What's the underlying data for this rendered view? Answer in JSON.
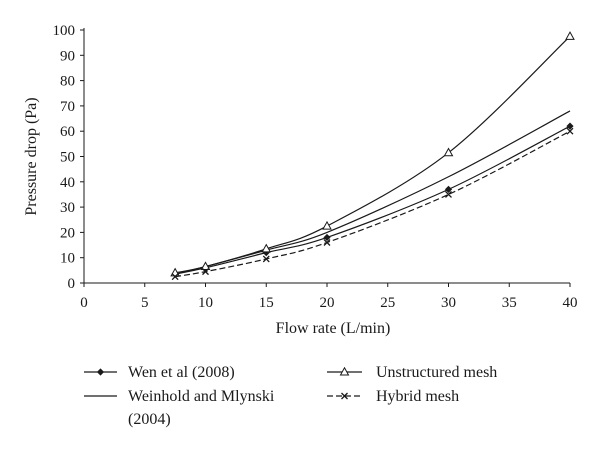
{
  "chart_data": {
    "type": "line",
    "title": "",
    "xlabel": "Flow rate (L/min)",
    "ylabel": "Pressure drop (Pa)",
    "xlim": [
      0,
      40
    ],
    "ylim": [
      0,
      100
    ],
    "x_ticks": [
      0,
      5,
      10,
      15,
      20,
      25,
      30,
      35,
      40
    ],
    "y_ticks": [
      0,
      10,
      20,
      30,
      40,
      50,
      60,
      70,
      80,
      90,
      100
    ],
    "grid": false,
    "legend_position": "bottom",
    "series": [
      {
        "name": "Wen et al (2008)",
        "marker": "diamond",
        "line_style": "solid",
        "color": "#1a1a1a",
        "x": [
          7.5,
          10,
          15,
          20,
          30,
          40
        ],
        "y": [
          3.5,
          6,
          12,
          18,
          37,
          62
        ]
      },
      {
        "name": "Weinhold and Mlynski (2004)",
        "marker": "none",
        "line_style": "solid",
        "color": "#1a1a1a",
        "x": [
          7.5,
          10,
          15,
          20,
          30,
          40
        ],
        "y": [
          3.5,
          6.5,
          13,
          20,
          42,
          68
        ]
      },
      {
        "name": "Unstructured mesh",
        "marker": "triangle",
        "line_style": "solid",
        "color": "#1a1a1a",
        "x": [
          7.5,
          10,
          15,
          20,
          30,
          40
        ],
        "y": [
          4,
          6.5,
          13.5,
          22.5,
          51.5,
          97.5
        ]
      },
      {
        "name": "Hybrid mesh",
        "marker": "x",
        "line_style": "dashed",
        "color": "#1a1a1a",
        "x": [
          7.5,
          10,
          15,
          20,
          30,
          40
        ],
        "y": [
          2.5,
          4.5,
          9.5,
          16,
          35,
          60
        ]
      }
    ],
    "legend": {
      "col1": [
        "Wen et al (2008)",
        "Weinhold and Mlynski",
        "(2004)"
      ],
      "col2": [
        "Unstructured mesh",
        "Hybrid mesh"
      ]
    }
  }
}
